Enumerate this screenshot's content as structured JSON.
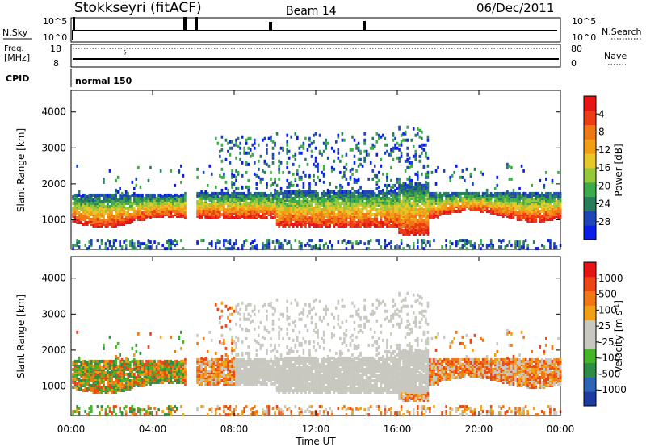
{
  "header": {
    "station": "Stokkseyri (fitACF)",
    "beam": "Beam 14",
    "date": "06/Dec/2011"
  },
  "status_panels": {
    "nsky_label": "N.Sky",
    "nsky_ticks": [
      "10^5",
      "10^0"
    ],
    "nsearch_label": "N.Search",
    "nsearch_ticks": [
      "10^5",
      "10^0"
    ],
    "freq_label_1": "Freq.",
    "freq_label_2": "[MHz]",
    "freq_ticks": [
      "18",
      "8"
    ],
    "nave_label": "Nave",
    "nave_ticks": [
      "80",
      "0"
    ],
    "cpid_label": "CPID",
    "cpid_value": "normal 150"
  },
  "chart_data": [
    {
      "type": "heatmap",
      "name": "power",
      "ylabel": "Slant Range [km]",
      "xlabel": "",
      "ylim": [
        180,
        4600
      ],
      "xlim_hours": [
        0,
        24
      ],
      "y_ticks": [
        "1000",
        "2000",
        "3000",
        "4000"
      ],
      "x_ticks": [
        "00:00",
        "04:00",
        "08:00",
        "12:00",
        "16:00",
        "20:00",
        "00:00"
      ],
      "colorbar": {
        "label": "Power [dB]",
        "ticks": [
          "4",
          "8",
          "12",
          "16",
          "20",
          "24",
          "28"
        ],
        "colors": [
          "#0a1ee6",
          "#1e46b4",
          "#2a7d5a",
          "#3faa4a",
          "#96c83c",
          "#e6c828",
          "#f0a014",
          "#f07814",
          "#eb3c14",
          "#e61414"
        ]
      }
    },
    {
      "type": "heatmap",
      "name": "velocity",
      "ylabel": "Slant Range [km]",
      "xlabel": "Time UT",
      "ylim": [
        180,
        4600
      ],
      "xlim_hours": [
        0,
        24
      ],
      "y_ticks": [
        "1000",
        "2000",
        "3000",
        "4000"
      ],
      "x_ticks": [
        "00:00",
        "04:00",
        "08:00",
        "12:00",
        "16:00",
        "20:00",
        "00:00"
      ],
      "colorbar": {
        "label": "Velocity [m s",
        "label_sup": "-1",
        "label_end": "]",
        "ticks": [
          "1000",
          "500",
          "100",
          "25",
          "-25",
          "-100",
          "-500",
          "-1000"
        ],
        "colors": [
          "#1e3ca0",
          "#2d64b4",
          "#2e8c46",
          "#46b428",
          "#c8c8c0",
          "#c8c8c0",
          "#f0a014",
          "#f07814",
          "#eb4614",
          "#e61414"
        ]
      }
    }
  ]
}
